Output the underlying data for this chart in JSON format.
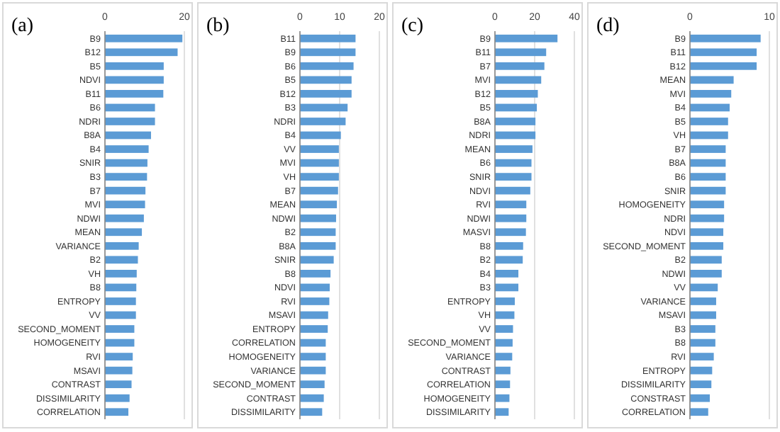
{
  "chart_data": [
    {
      "type": "bar",
      "orientation": "horizontal",
      "title": "(a)",
      "color": "#5b9bd5",
      "grid": "x",
      "xlim": [
        0,
        20
      ],
      "xticks": [
        0,
        20
      ],
      "categories": [
        "B9",
        "B12",
        "B5",
        "NDVI",
        "B11",
        "B6",
        "NDRI",
        "B8A",
        "B4",
        "SNIR",
        "B3",
        "B7",
        "MVI",
        "NDWI",
        "MEAN",
        "VARIANCE",
        "B2",
        "VH",
        "B8",
        "ENTROPY",
        "VV",
        "SECOND_MOMENT",
        "HOMOGENEITY",
        "RVI",
        "MSAVI",
        "CONTRAST",
        "DISSIMILARITY",
        "CORRELATION"
      ],
      "values": [
        19.5,
        18.3,
        14.8,
        14.8,
        14.7,
        12.6,
        12.6,
        11.6,
        11,
        10.7,
        10.6,
        10.2,
        10.1,
        9.8,
        9.3,
        8.5,
        8.3,
        8,
        7.9,
        7.8,
        7.8,
        7.4,
        7.4,
        7,
        6.9,
        6.7,
        6.2,
        5.9
      ]
    },
    {
      "type": "bar",
      "orientation": "horizontal",
      "title": "(b)",
      "color": "#5b9bd5",
      "grid": "x",
      "xlim": [
        0,
        20
      ],
      "xticks": [
        0,
        10,
        20
      ],
      "categories": [
        "B11",
        "B9",
        "B6",
        "B5",
        "B12",
        "B3",
        "NDRI",
        "B4",
        "VV",
        "MVI",
        "VH",
        "B7",
        "MEAN",
        "NDWI",
        "B2",
        "B8A",
        "SNIR",
        "B8",
        "NDVI",
        "RVI",
        "MSAVI",
        "ENTROPY",
        "CORRELATION",
        "HOMOGENEITY",
        "VARIANCE",
        "SECOND_MOMENT",
        "CONTRAST",
        "DISSIMILARITY"
      ],
      "values": [
        14,
        14,
        13.5,
        13,
        13,
        12,
        11.5,
        10.3,
        9.8,
        9.8,
        9.8,
        9.6,
        9.3,
        9.1,
        9,
        9,
        8.5,
        7.7,
        7.5,
        7.4,
        7.1,
        7,
        6.5,
        6.5,
        6.5,
        6.2,
        6,
        5.6
      ]
    },
    {
      "type": "bar",
      "orientation": "horizontal",
      "title": "(c)",
      "color": "#5b9bd5",
      "grid": "x",
      "xlim": [
        0,
        40
      ],
      "xticks": [
        0,
        20,
        40
      ],
      "categories": [
        "B9",
        "B11",
        "B7",
        "MVI",
        "B12",
        "B5",
        "B8A",
        "NDRI",
        "MEAN",
        "B6",
        "SNIR",
        "NDVI",
        "RVI",
        "NDWI",
        "MASVI",
        "B8",
        "B2",
        "B4",
        "B3",
        "ENTROPY",
        "VH",
        "VV",
        "SECOND_MOMENT",
        "VARIANCE",
        "CONTRAST",
        "CORRELATION",
        "HOMOGENEITY",
        "DISSIMILARITY"
      ],
      "values": [
        31.5,
        25.8,
        24.9,
        23.3,
        21.6,
        21.1,
        20.4,
        20.4,
        18.9,
        18.4,
        18.4,
        17.8,
        15.8,
        15.8,
        15.6,
        14.2,
        14,
        11.8,
        11.8,
        10,
        9.8,
        9.1,
        8.9,
        8.7,
        7.8,
        7.6,
        7.3,
        6.9
      ]
    },
    {
      "type": "bar",
      "orientation": "horizontal",
      "title": "(d)",
      "color": "#5b9bd5",
      "grid": "x",
      "xlim": [
        0,
        10
      ],
      "xticks": [
        0,
        10
      ],
      "categories": [
        "B9",
        "B11",
        "B12",
        "MEAN",
        "MVI",
        "B4",
        "B5",
        "VH",
        "B7",
        "B8A",
        "B6",
        "SNIR",
        "HOMOGENEITY",
        "NDRI",
        "NDVI",
        "SECOND_MOMENT",
        "B2",
        "NDWI",
        "VV",
        "VARIANCE",
        "MSAVI",
        "B3",
        "B8",
        "RVI",
        "ENTROPY",
        "DISSIMILARITY",
        "CONSTRAST",
        "CORRELATION"
      ],
      "values": [
        8.9,
        8.4,
        8.4,
        5.5,
        5.2,
        5,
        4.8,
        4.8,
        4.5,
        4.5,
        4.5,
        4.5,
        4.3,
        4.3,
        4.2,
        4.2,
        4,
        4,
        3.5,
        3.3,
        3.3,
        3.2,
        3.2,
        3,
        2.8,
        2.7,
        2.5,
        2.3
      ]
    }
  ]
}
